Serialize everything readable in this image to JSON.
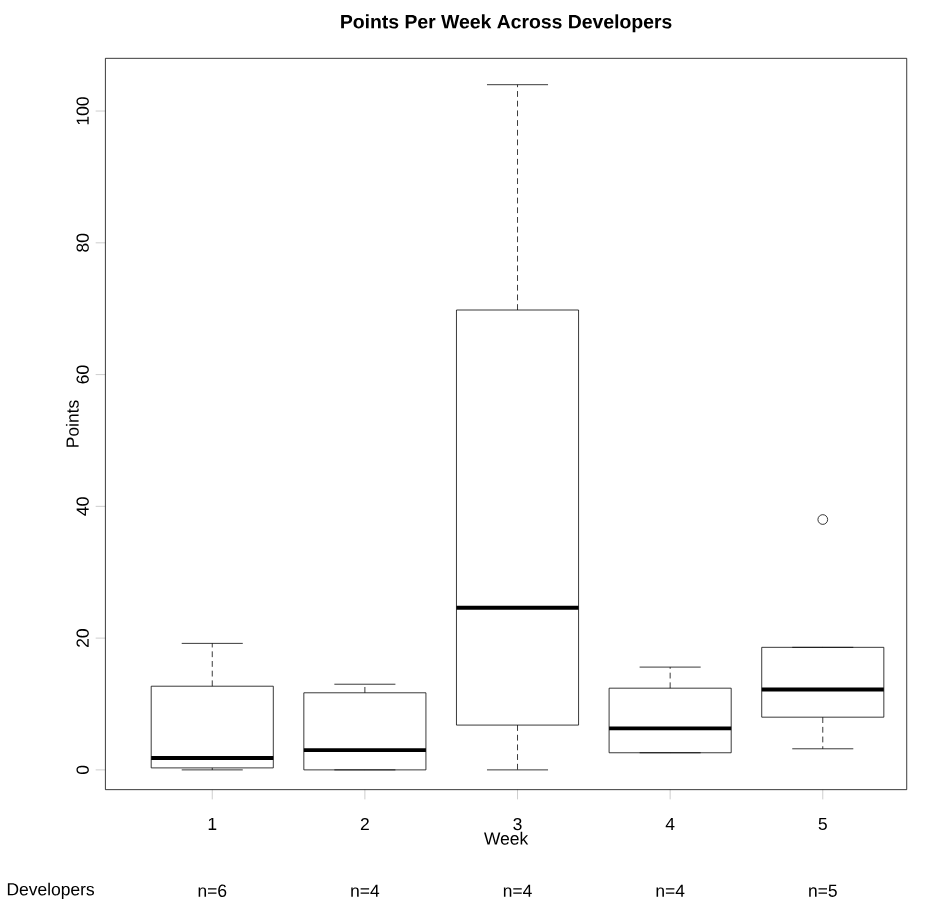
{
  "chart_data": {
    "type": "box",
    "title": "Points Per Week Across Developers",
    "xlabel": "Week",
    "ylabel": "Points",
    "categories": [
      "1",
      "2",
      "3",
      "4",
      "5"
    ],
    "boxes": [
      {
        "low": 0,
        "q1": 0.3,
        "median": 1.8,
        "q3": 12.7,
        "high": 19.2
      },
      {
        "low": 0,
        "q1": 0,
        "median": 3,
        "q3": 11.7,
        "high": 13
      },
      {
        "low": 0,
        "q1": 6.8,
        "median": 24.6,
        "q3": 69.8,
        "high": 104
      },
      {
        "low": 2.6,
        "q1": 2.6,
        "median": 6.3,
        "q3": 12.4,
        "high": 15.6
      },
      {
        "low": 3.2,
        "q1": 8,
        "median": 12.2,
        "q3": 18.6,
        "high": 18.6,
        "outliers": [
          38
        ]
      }
    ],
    "ylim": [
      -3,
      108
    ],
    "yticks": [
      0,
      20,
      40,
      60,
      80,
      100
    ],
    "annotations": [
      "Developers",
      "n=6",
      "n=4",
      "n=4",
      "n=4",
      "n=5"
    ]
  }
}
